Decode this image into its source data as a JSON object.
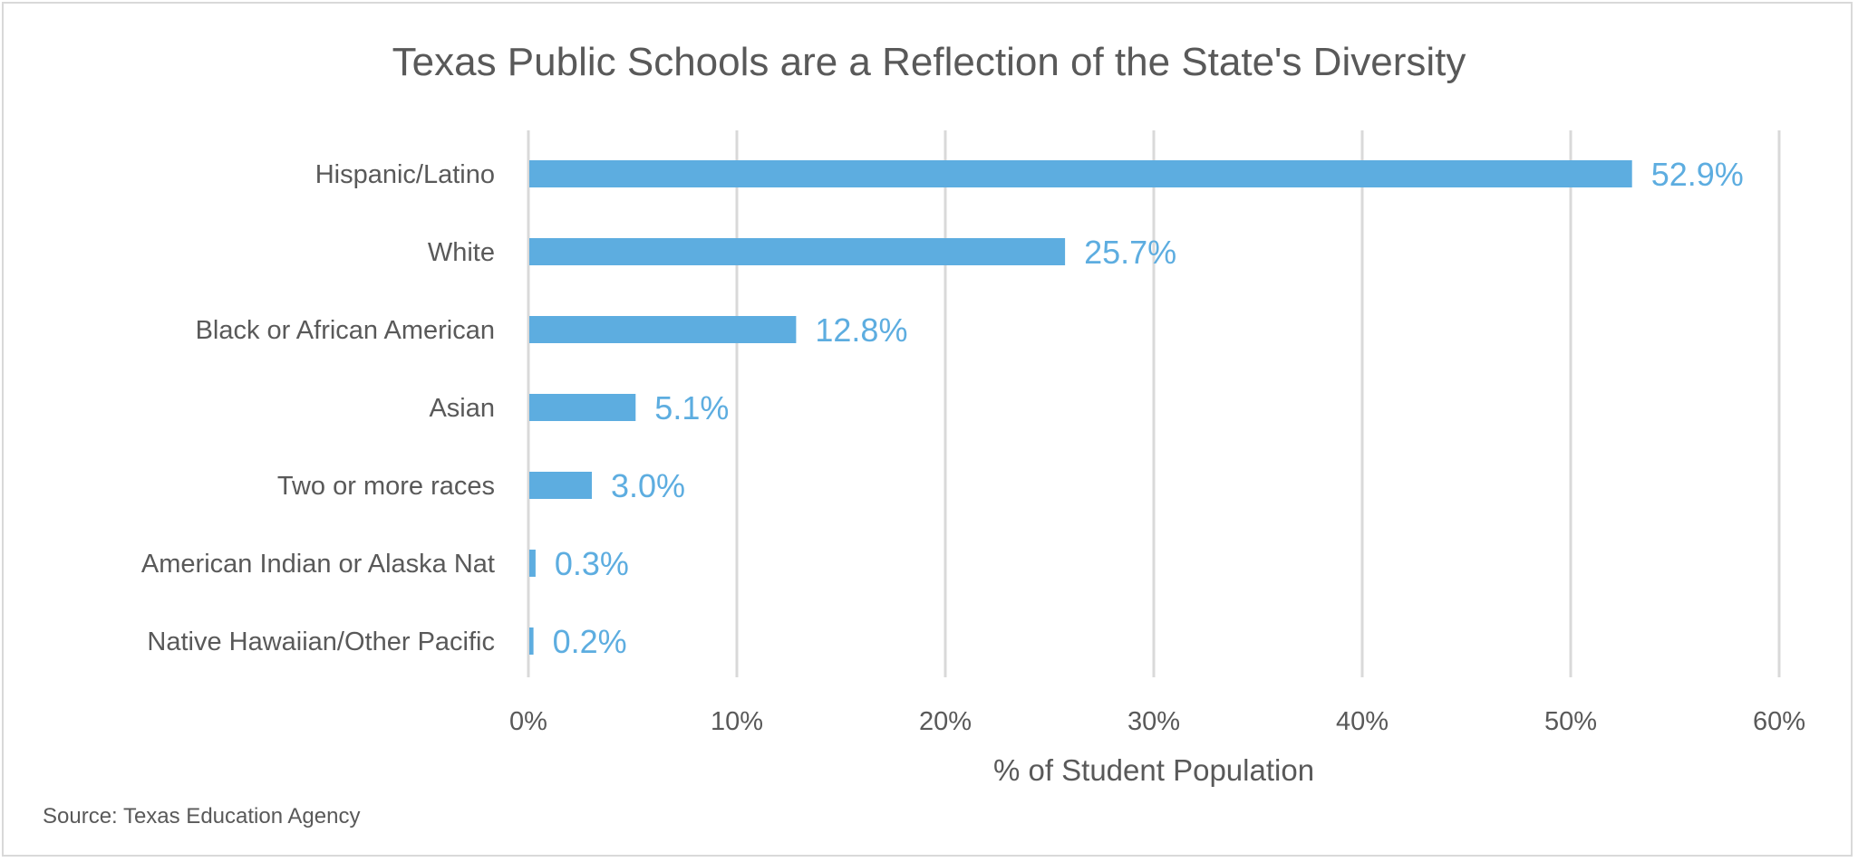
{
  "chart_data": {
    "type": "bar",
    "orientation": "horizontal",
    "title": "Texas Public Schools are a Reflection of the State's Diversity",
    "categories": [
      "Hispanic/Latino",
      "White",
      "Black or African American",
      "Asian",
      "Two or more races",
      "American Indian or Alaska Nat",
      "Native Hawaiian/Other Pacific"
    ],
    "values": [
      52.9,
      25.7,
      12.8,
      5.1,
      3.0,
      0.3,
      0.2
    ],
    "data_labels": [
      "52.9%",
      "25.7%",
      "12.8%",
      "5.1%",
      "3.0%",
      "0.3%",
      "0.2%"
    ],
    "xlabel": "% of Student Population",
    "ylabel": "",
    "xlim": [
      0,
      60
    ],
    "xticks": [
      0,
      10,
      20,
      30,
      40,
      50,
      60
    ],
    "xtick_labels": [
      "0%",
      "10%",
      "20%",
      "30%",
      "40%",
      "50%",
      "60%"
    ],
    "grid": true,
    "bar_color": "#5dade0",
    "source": "Source: Texas Education Agency"
  }
}
